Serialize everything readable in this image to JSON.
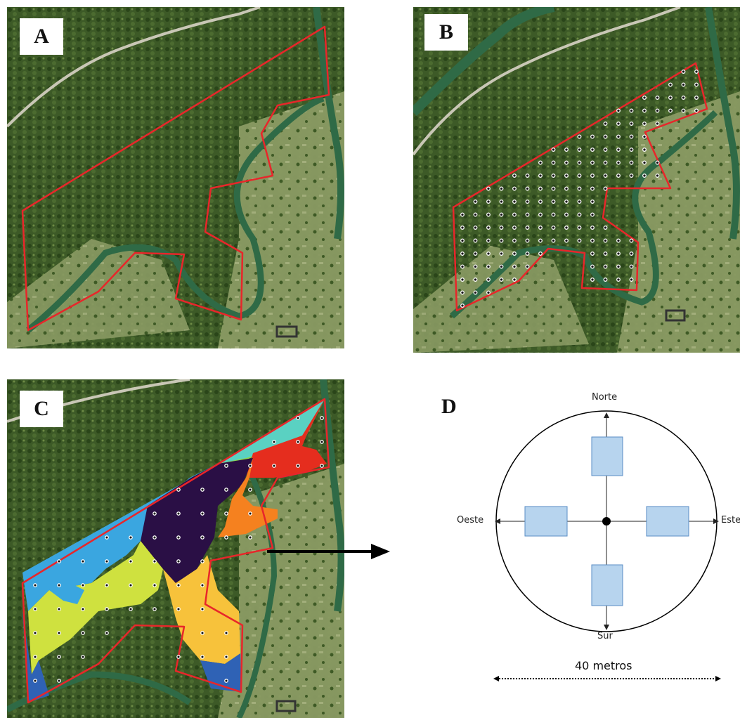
{
  "panels": {
    "a": {
      "label": "A"
    },
    "b": {
      "label": "B"
    },
    "c": {
      "label": "C"
    },
    "d": {
      "label": "D"
    }
  },
  "diagram": {
    "north": "Norte",
    "south": "Sur",
    "west": "Oeste",
    "east": "Este",
    "scale_label": "40 metros"
  },
  "colors": {
    "boundary": "#e8262a",
    "forest": "#3d5a27",
    "forest_light": "#587a3a",
    "pasture": "#8a9a63",
    "river": "#2f6a46",
    "road": "#c9c7b6",
    "class_cyan": "#5ad1c2",
    "class_lightgreen": "#8cd64c",
    "class_red": "#e52d1e",
    "class_skyblue": "#3aa6e0",
    "class_darkpurple": "#2a0f45",
    "class_orange": "#f5811f",
    "class_yellowgreen": "#cfe13f",
    "class_gold": "#f7c23b",
    "class_blue": "#2f62b5",
    "subplot_fill": "#b7d4ee",
    "subplot_stroke": "#5a8dc4"
  }
}
